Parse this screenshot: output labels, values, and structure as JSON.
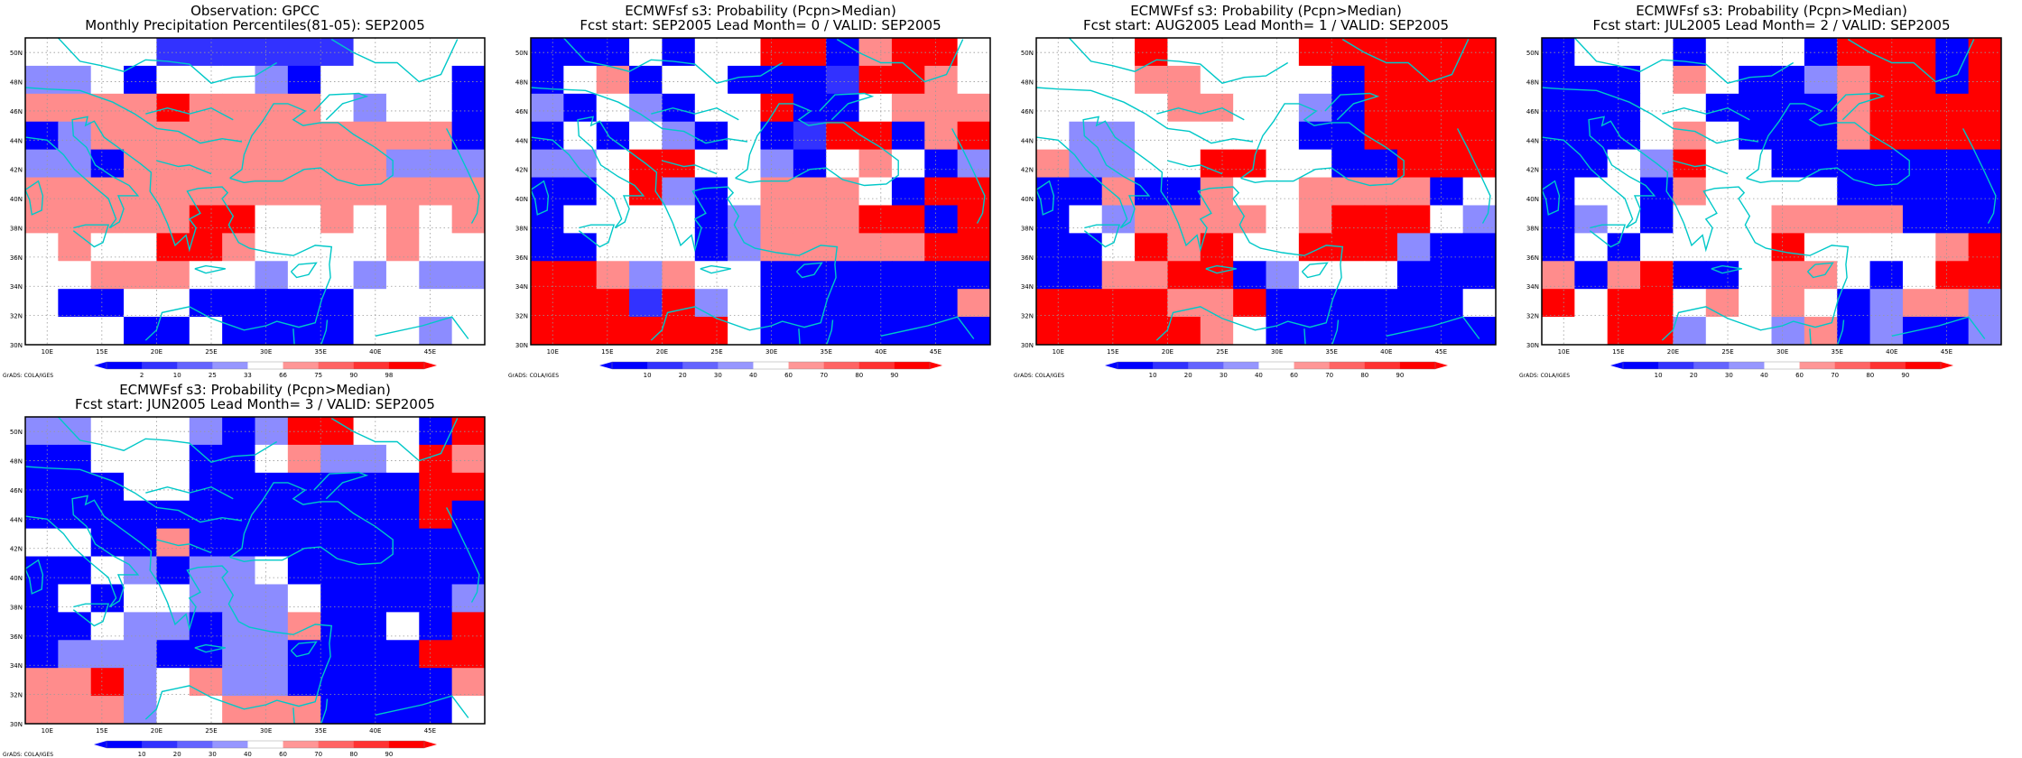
{
  "chart_data": [
    {
      "type": "heatmap",
      "title": "Observation: GPCC",
      "subtitle": "Monthly Precipitation Percentiles(81-05): SEP2005",
      "credit": "GrADS: COLA/IGES",
      "x": [
        "10E",
        "15E",
        "20E",
        "25E",
        "30E",
        "35E",
        "40E",
        "45E"
      ],
      "y": [
        "30N",
        "32N",
        "34N",
        "36N",
        "38N",
        "40N",
        "42N",
        "44N",
        "46N",
        "48N",
        "50N"
      ],
      "colorbar": {
        "labels": [
          "2",
          "10",
          "25",
          "33",
          "66",
          "75",
          "90",
          "98"
        ],
        "left_arrow": "#0000ff",
        "right_arrow": "#ff0000"
      },
      "grid": [
        "WWWWVVVVVVWWWW",
        "LLWBWWWLBWWWWB",
        "PPPPRPPPPWLWWB",
        "BLPPPPPPPPPPPB",
        "LLBPPPPPPPPLLL",
        "PPPPPPPPPPPPPP",
        "PPPPPRRWWPWPWP",
        "WPWWRRPWWWWPWW",
        "WWPPPWWLWWLWLL",
        "WBBWWBBBBBWWWW",
        "WWWBBWBBBBWWLW"
      ]
    },
    {
      "type": "heatmap",
      "title": "ECMWFsf s3: Probability (Pcpn>Median)",
      "subtitle": "Fcst start: SEP2005   Lead Month= 0 / VALID: SEP2005",
      "credit": "GrADS: COLA/IGES",
      "x": [
        "10E",
        "15E",
        "20E",
        "25E",
        "30E",
        "35E",
        "40E",
        "45E"
      ],
      "y": [
        "30N",
        "32N",
        "34N",
        "36N",
        "38N",
        "40N",
        "42N",
        "44N",
        "46N",
        "48N",
        "50N"
      ],
      "colorbar": {
        "labels": [
          "10",
          "20",
          "30",
          "40",
          "60",
          "70",
          "80",
          "90"
        ],
        "left_arrow": "#0000ff",
        "right_arrow": "#ff0000"
      },
      "grid": [
        "BBBWBWWRRBPRRW",
        "BWPBWWBBBVRRPW",
        "LBWLBWWRBBWPPP",
        "BWBWLBWBVRRBPR",
        "LLWRRWWLBWPWBL",
        "BBWRLBWPPPWBRR",
        "BWWWWBLPPPRRBR",
        "BBWWWBLPPPPPRR",
        "RRPLPWWBBBBBBB",
        "RRRVRLWBBBBBBP",
        "RRRRRRWBBBBBBB"
      ]
    },
    {
      "type": "heatmap",
      "title": "ECMWFsf s3: Probability (Pcpn>Median)",
      "subtitle": "Fcst start: AUG2005   Lead Month= 1 / VALID: SEP2005",
      "credit": "GrADS: COLA/IGES",
      "x": [
        "10E",
        "15E",
        "20E",
        "25E",
        "30E",
        "35E",
        "40E",
        "45E"
      ],
      "y": [
        "30N",
        "32N",
        "34N",
        "36N",
        "38N",
        "40N",
        "42N",
        "44N",
        "46N",
        "48N",
        "50N"
      ],
      "colorbar": {
        "labels": [
          "10",
          "20",
          "30",
          "40",
          "60",
          "70",
          "80",
          "90"
        ],
        "left_arrow": "#0000ff",
        "right_arrow": "#ff0000"
      },
      "grid": [
        "WWWRWWWWRRRRRR",
        "WWWPPWWWWBRRRR",
        "WWWWPPWWLBRRRR",
        "WLLWWWWWBBRRRR",
        "PLLWWRRWWBBRRR",
        "BBPBBPWWPPPPBW",
        "BWLPPPPWPRRRWL",
        "BBWRPRWWRRRLBB",
        "BBPPRRBLWWWBBB",
        "RRRRPPRBBBBBBW",
        "RRRRRPWBBBBBBB"
      ]
    },
    {
      "type": "heatmap",
      "title": "ECMWFsf s3: Probability (Pcpn>Median)",
      "subtitle": "Fcst start: JUL2005   Lead Month= 2 / VALID: SEP2005",
      "credit": "GrADS: COLA/IGES",
      "x": [
        "10E",
        "15E",
        "20E",
        "25E",
        "30E",
        "35E",
        "40E",
        "45E"
      ],
      "y": [
        "30N",
        "32N",
        "34N",
        "36N",
        "38N",
        "40N",
        "42N",
        "44N",
        "46N",
        "48N",
        "50N"
      ],
      "colorbar": {
        "labels": [
          "10",
          "20",
          "30",
          "40",
          "60",
          "70",
          "80",
          "90"
        ],
        "left_arrow": "#0000ff",
        "right_arrow": "#ff0000"
      },
      "grid": [
        "BWWWBWWWBRRRBR",
        "BBBWPWBBLPRRBR",
        "BBBWWBBBBPRRRR",
        "BBBWPWBBBPRRRR",
        "BBWLRWWBBBBBBB",
        "BWWBPWWWWBBBBB",
        "BLWBWWWPPPPBBB",
        "BWBWWWWRWWWWPR",
        "PBPRBBWPPWBWRR",
        "RWRRWPWPWBLPPL",
        "WWRRLWWLPBLBBL"
      ]
    },
    {
      "type": "heatmap",
      "title": "ECMWFsf s3: Probability (Pcpn>Median)",
      "subtitle": "Fcst start: JUN2005   Lead Month= 3 / VALID: SEP2005",
      "credit": "GrADS: COLA/IGES",
      "x": [
        "10E",
        "15E",
        "20E",
        "25E",
        "30E",
        "35E",
        "40E",
        "45E"
      ],
      "y": [
        "30N",
        "32N",
        "34N",
        "36N",
        "38N",
        "40N",
        "42N",
        "44N",
        "46N",
        "48N",
        "50N"
      ],
      "colorbar": {
        "labels": [
          "10",
          "20",
          "30",
          "40",
          "60",
          "70",
          "80",
          "90"
        ],
        "left_arrow": "#0000ff",
        "right_arrow": "#ff0000"
      },
      "grid": [
        "LLWWWLBLRRWWBR",
        "BBWWWBBWPLLWRP",
        "BBBWWBBBBBBBRR",
        "BBBBBBBBBBBBRB",
        "WWBBPBBBBBBBBB",
        "BBWLBLLWBBBBBB",
        "BWBWWLLLWBBBBL",
        "BBWLLBLLPBBWBR",
        "BLLLBBLLBBBBRR",
        "PPRLWPLLBBBBBP",
        "PPPLWWPPPBBBBW"
      ]
    }
  ]
}
